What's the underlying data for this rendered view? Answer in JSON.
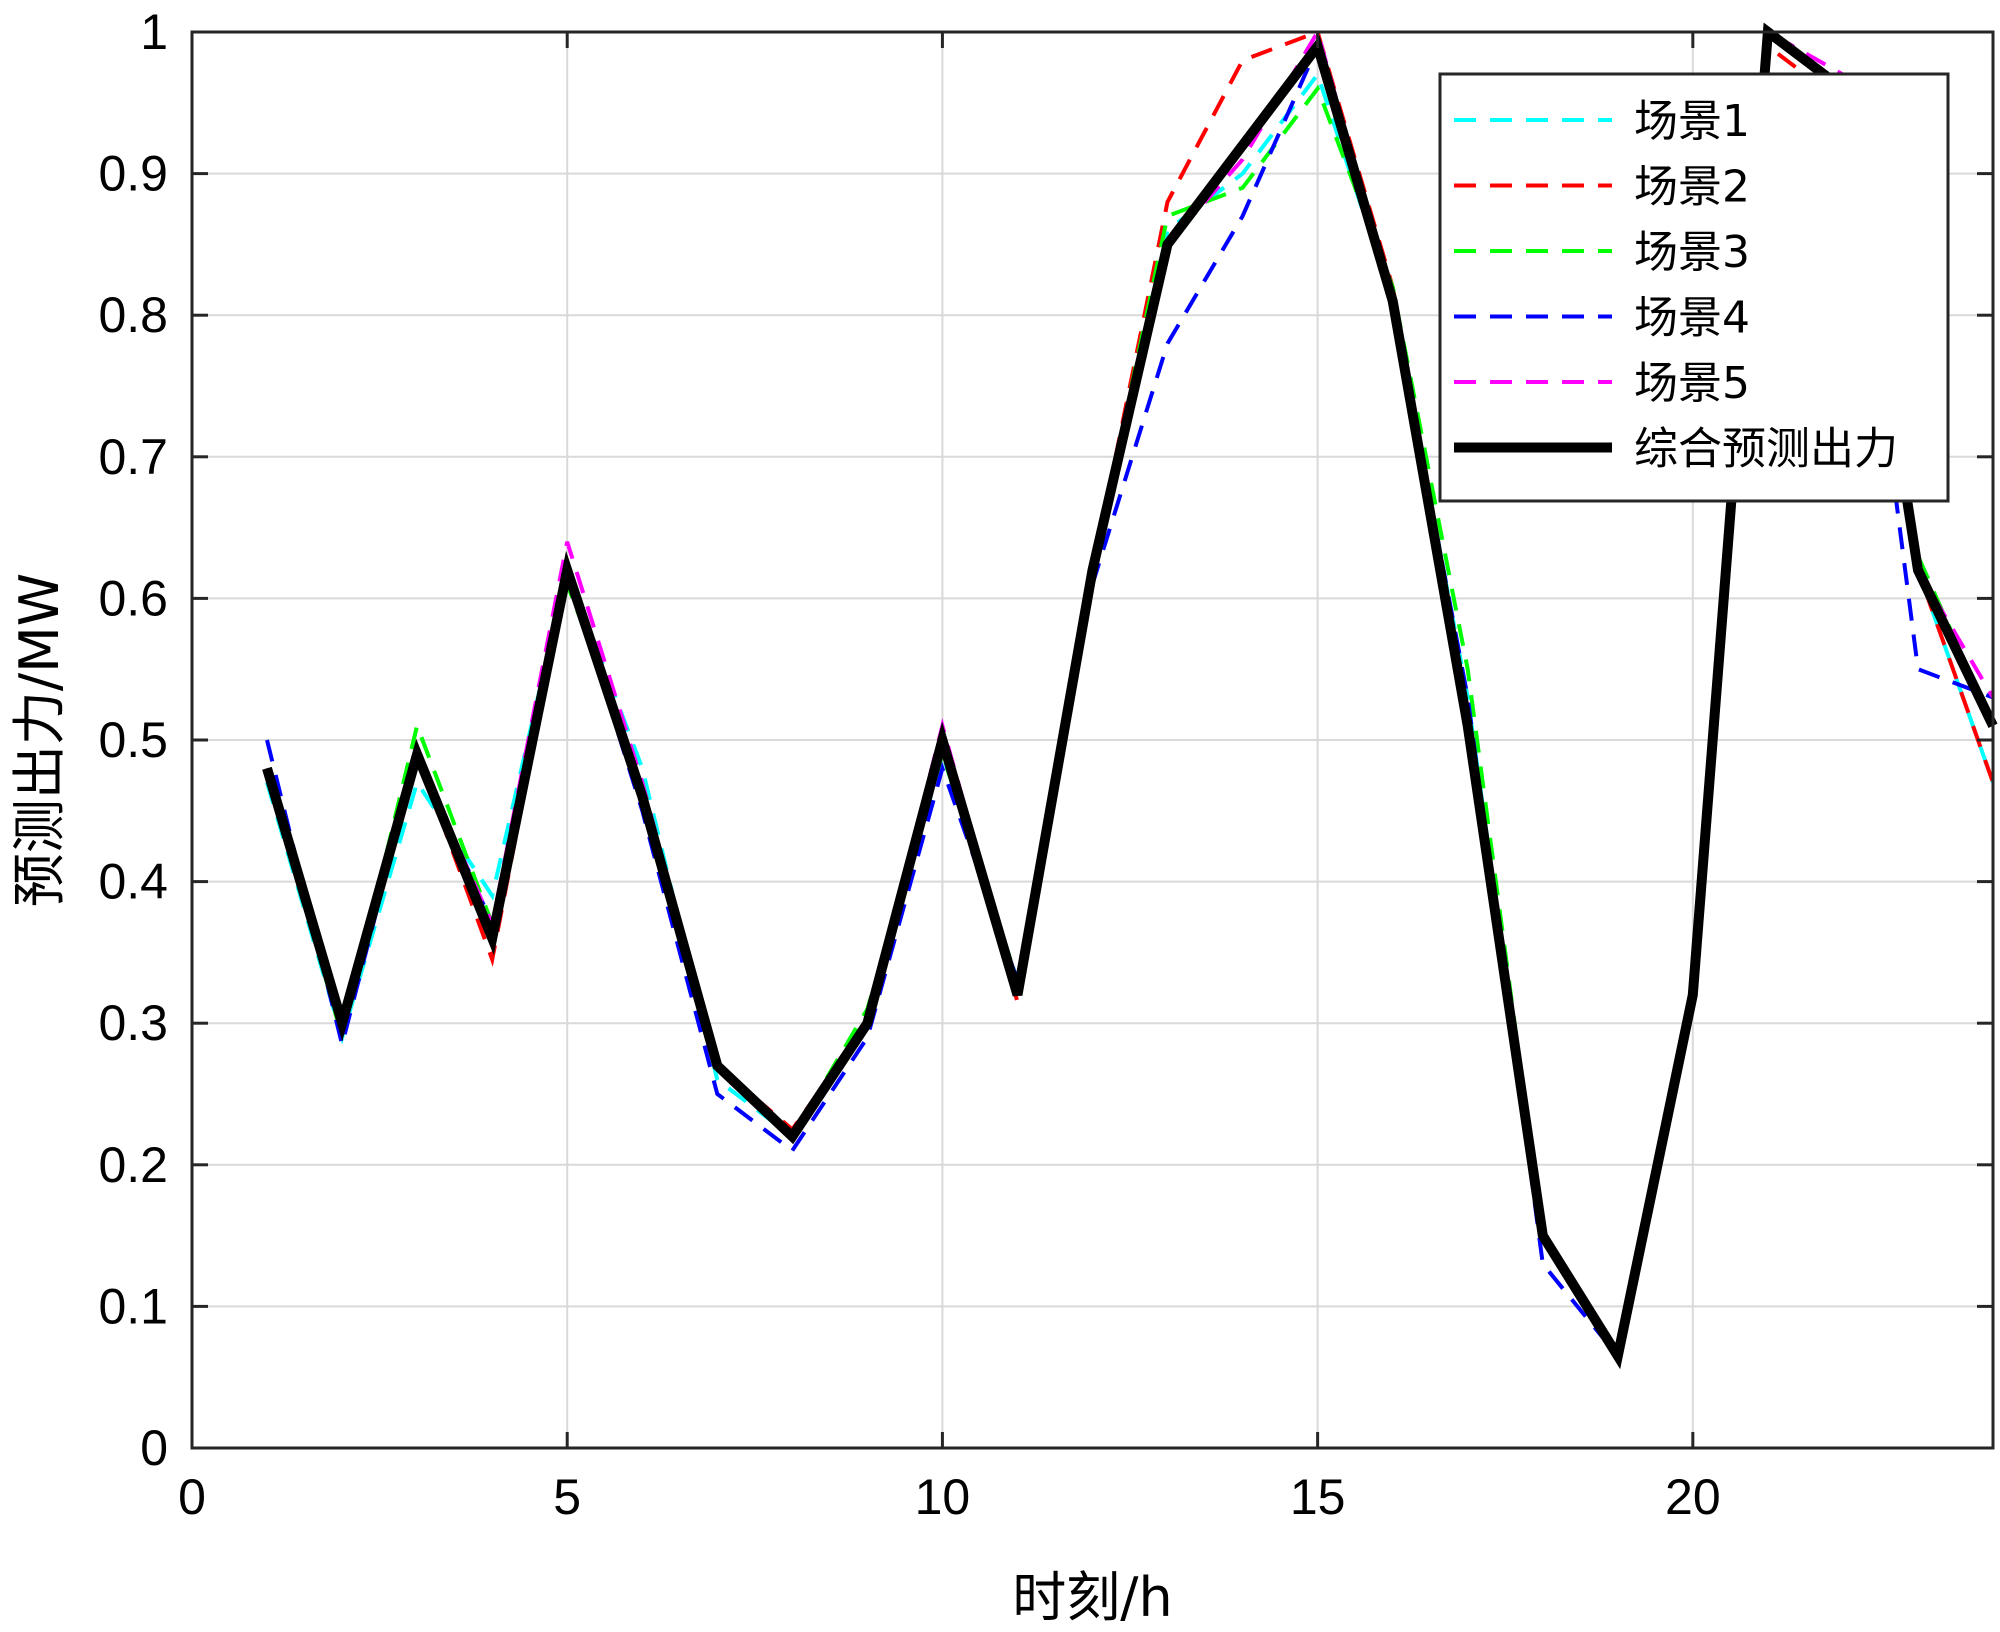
{
  "chart_data": {
    "type": "line",
    "title": "",
    "xlabel": "时刻/h",
    "ylabel": "预测出力/MW",
    "xlim": [
      0,
      24
    ],
    "ylim": [
      0,
      1
    ],
    "xticks": [
      0,
      5,
      10,
      15,
      20
    ],
    "yticks": [
      0,
      0.1,
      0.2,
      0.3,
      0.4,
      0.5,
      0.6,
      0.7,
      0.8,
      0.9,
      1
    ],
    "ytick_labels": [
      "0",
      "0.1",
      "0.2",
      "0.3",
      "0.4",
      "0.5",
      "0.6",
      "0.7",
      "0.8",
      "0.9",
      "1"
    ],
    "grid": true,
    "legend_position": "top-right",
    "x": [
      1,
      2,
      3,
      4,
      5,
      6,
      7,
      8,
      9,
      10,
      11,
      12,
      13,
      14,
      15,
      16,
      17,
      18,
      19,
      20,
      21,
      22,
      23,
      24
    ],
    "series": [
      {
        "name": "场景1",
        "color": "#00ffff",
        "style": "dashed",
        "values": [
          0.47,
          0.29,
          0.47,
          0.39,
          0.62,
          0.48,
          0.26,
          0.22,
          0.3,
          0.49,
          0.33,
          0.62,
          0.86,
          0.9,
          0.97,
          0.81,
          0.53,
          0.15,
          0.065,
          0.32,
          1.0,
          0.96,
          0.62,
          0.47
        ]
      },
      {
        "name": "场景2",
        "color": "#ff0000",
        "style": "dashed",
        "values": [
          0.48,
          0.3,
          0.49,
          0.345,
          0.62,
          0.46,
          0.27,
          0.225,
          0.3,
          0.5,
          0.315,
          0.62,
          0.88,
          0.98,
          1.0,
          0.82,
          0.52,
          0.15,
          0.065,
          0.32,
          0.99,
          0.95,
          0.62,
          0.47
        ]
      },
      {
        "name": "场景3",
        "color": "#00ff00",
        "style": "dashed",
        "values": [
          0.48,
          0.29,
          0.51,
          0.37,
          0.61,
          0.47,
          0.27,
          0.22,
          0.31,
          0.49,
          0.33,
          0.62,
          0.87,
          0.89,
          0.96,
          0.82,
          0.55,
          0.15,
          0.065,
          0.32,
          1.0,
          0.96,
          0.63,
          0.51
        ]
      },
      {
        "name": "场景4",
        "color": "#0000ff",
        "style": "dashed",
        "values": [
          0.5,
          0.285,
          0.49,
          0.37,
          0.62,
          0.45,
          0.25,
          0.21,
          0.29,
          0.48,
          0.33,
          0.61,
          0.78,
          0.87,
          0.99,
          0.81,
          0.53,
          0.13,
          0.065,
          0.32,
          1.0,
          0.96,
          0.55,
          0.53
        ]
      },
      {
        "name": "场景5",
        "color": "#ff00ff",
        "style": "dashed",
        "values": [
          0.48,
          0.3,
          0.49,
          0.37,
          0.64,
          0.47,
          0.27,
          0.22,
          0.3,
          0.51,
          0.32,
          0.62,
          0.85,
          0.91,
          1.0,
          0.81,
          0.52,
          0.15,
          0.065,
          0.32,
          1.0,
          0.97,
          0.62,
          0.53
        ]
      },
      {
        "name": "综合预测出力",
        "color": "#000000",
        "style": "solid",
        "values": [
          0.48,
          0.3,
          0.49,
          0.36,
          0.62,
          0.46,
          0.27,
          0.22,
          0.3,
          0.5,
          0.32,
          0.62,
          0.85,
          0.92,
          0.99,
          0.81,
          0.51,
          0.15,
          0.065,
          0.32,
          1.0,
          0.96,
          0.62,
          0.51
        ]
      }
    ]
  }
}
